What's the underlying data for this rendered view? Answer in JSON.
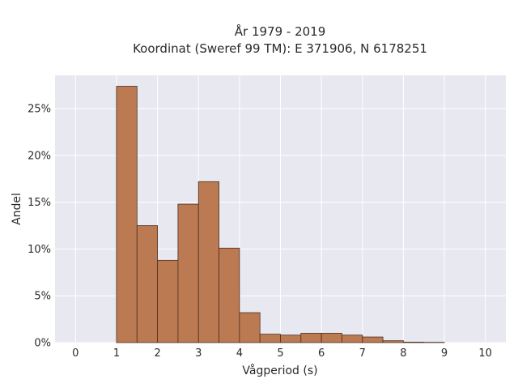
{
  "chart_data": {
    "type": "bar",
    "title_line1": "År 1979 - 2019",
    "title_line2": "Koordinat (Sweref 99 TM): E 371906, N 6178251",
    "xlabel": "Vågperiod (s)",
    "ylabel": "Andel",
    "xlim": [
      -0.5,
      10.5
    ],
    "ylim": [
      0,
      0.2857
    ],
    "xticks": [
      0,
      1,
      2,
      3,
      4,
      5,
      6,
      7,
      8,
      9,
      10
    ],
    "xtick_labels": [
      "0",
      "1",
      "2",
      "3",
      "4",
      "5",
      "6",
      "7",
      "8",
      "9",
      "10"
    ],
    "yticks": [
      0,
      0.05,
      0.1,
      0.15,
      0.2,
      0.25
    ],
    "ytick_labels": [
      "0%",
      "5%",
      "10%",
      "15%",
      "20%",
      "25%"
    ],
    "bin_width": 0.5,
    "bins": [
      {
        "start": 1.0,
        "value": 0.274
      },
      {
        "start": 1.5,
        "value": 0.125
      },
      {
        "start": 2.0,
        "value": 0.088
      },
      {
        "start": 2.5,
        "value": 0.148
      },
      {
        "start": 3.0,
        "value": 0.172
      },
      {
        "start": 3.5,
        "value": 0.101
      },
      {
        "start": 4.0,
        "value": 0.032
      },
      {
        "start": 4.5,
        "value": 0.009
      },
      {
        "start": 5.0,
        "value": 0.008
      },
      {
        "start": 5.5,
        "value": 0.01
      },
      {
        "start": 6.0,
        "value": 0.01
      },
      {
        "start": 6.5,
        "value": 0.008
      },
      {
        "start": 7.0,
        "value": 0.006
      },
      {
        "start": 7.5,
        "value": 0.002
      },
      {
        "start": 8.0,
        "value": 0.0005
      },
      {
        "start": 8.5,
        "value": 0.0003
      }
    ],
    "grid": true,
    "colors": {
      "bar_fill": "#bc7a53",
      "bar_edge": "#4a2e1f",
      "plot_background": "#e8e8f1",
      "grid": "#ffffff"
    }
  }
}
